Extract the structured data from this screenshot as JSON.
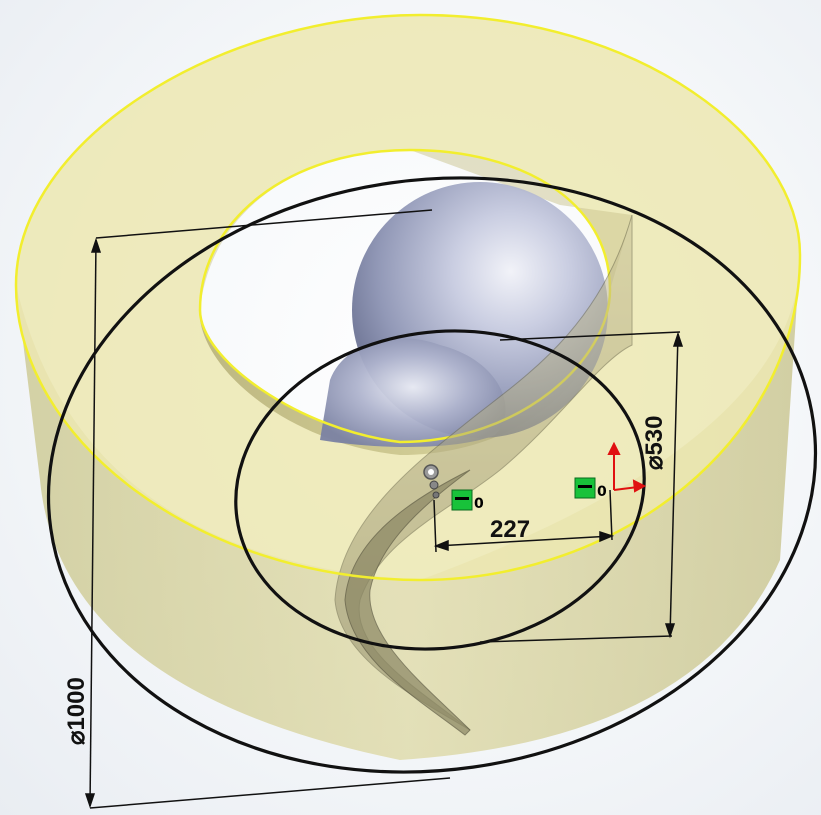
{
  "dimensions": {
    "outer_diameter": "⌀1000",
    "inner_diameter": "⌀530",
    "center_offset": "227"
  },
  "relations": {
    "left_zero": "0",
    "right_zero": "0"
  },
  "icons": {
    "origin": "origin-triad-icon",
    "pivot": "sketch-point-icon",
    "relation": "coincident-relation-icon"
  },
  "colors": {
    "body_fill": "#e8e3a4",
    "edge_highlight": "#f2ee2e",
    "sketch_line": "#111111",
    "blade_fill": "#b9b285",
    "sphere": "#c4c9e0",
    "relation_badge": "#18c23a",
    "axis_red": "#e01010"
  }
}
